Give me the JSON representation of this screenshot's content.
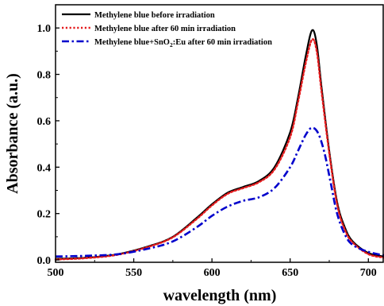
{
  "chart_data": {
    "type": "line",
    "xlabel": "wavelength (nm)",
    "ylabel": "Absorbance (a.u.)",
    "xlim": [
      500,
      710
    ],
    "ylim": [
      -0.01,
      1.1
    ],
    "x_ticks": [
      500,
      550,
      600,
      650,
      700
    ],
    "x_tick_labels": [
      "500",
      "550",
      "600",
      "650",
      "700"
    ],
    "y_ticks": [
      0.0,
      0.2,
      0.4,
      0.6,
      0.8,
      1.0
    ],
    "y_tick_labels": [
      "0.0",
      "0.2",
      "0.4",
      "0.6",
      "0.8",
      "1.0"
    ],
    "grid": false,
    "legend_position": "top-left",
    "series": [
      {
        "name": "Methylene blue before irradiation",
        "color": "#000000",
        "style": "solid",
        "points": [
          [
            500,
            0.005
          ],
          [
            520,
            0.01
          ],
          [
            540,
            0.025
          ],
          [
            560,
            0.06
          ],
          [
            575,
            0.1
          ],
          [
            590,
            0.18
          ],
          [
            600,
            0.24
          ],
          [
            610,
            0.29
          ],
          [
            620,
            0.315
          ],
          [
            630,
            0.34
          ],
          [
            640,
            0.4
          ],
          [
            650,
            0.55
          ],
          [
            655,
            0.7
          ],
          [
            660,
            0.88
          ],
          [
            664,
            0.99
          ],
          [
            667,
            0.93
          ],
          [
            670,
            0.75
          ],
          [
            675,
            0.47
          ],
          [
            680,
            0.25
          ],
          [
            685,
            0.14
          ],
          [
            690,
            0.08
          ],
          [
            700,
            0.03
          ],
          [
            710,
            0.015
          ]
        ]
      },
      {
        "name": "Methylene blue after 60 min irradiation",
        "color": "#e41a1c",
        "style": "dotted",
        "points": [
          [
            500,
            0.002
          ],
          [
            520,
            0.008
          ],
          [
            540,
            0.023
          ],
          [
            560,
            0.058
          ],
          [
            575,
            0.098
          ],
          [
            590,
            0.175
          ],
          [
            600,
            0.235
          ],
          [
            610,
            0.285
          ],
          [
            620,
            0.31
          ],
          [
            630,
            0.335
          ],
          [
            640,
            0.39
          ],
          [
            650,
            0.53
          ],
          [
            655,
            0.68
          ],
          [
            660,
            0.85
          ],
          [
            664,
            0.95
          ],
          [
            667,
            0.9
          ],
          [
            670,
            0.73
          ],
          [
            675,
            0.46
          ],
          [
            680,
            0.24
          ],
          [
            685,
            0.13
          ],
          [
            690,
            0.075
          ],
          [
            700,
            0.025
          ],
          [
            710,
            0.01
          ]
        ]
      },
      {
        "name_parts": {
          "before": "Methylene blue+SnO",
          "sub": "2",
          "after": ":Eu after  60 min irradiation"
        },
        "color": "#0000cc",
        "style": "dashdot",
        "points": [
          [
            500,
            0.015
          ],
          [
            520,
            0.018
          ],
          [
            540,
            0.025
          ],
          [
            560,
            0.05
          ],
          [
            575,
            0.08
          ],
          [
            590,
            0.14
          ],
          [
            600,
            0.19
          ],
          [
            610,
            0.23
          ],
          [
            620,
            0.255
          ],
          [
            630,
            0.27
          ],
          [
            640,
            0.31
          ],
          [
            650,
            0.4
          ],
          [
            655,
            0.47
          ],
          [
            660,
            0.54
          ],
          [
            664,
            0.57
          ],
          [
            668,
            0.545
          ],
          [
            672,
            0.46
          ],
          [
            676,
            0.33
          ],
          [
            680,
            0.2
          ],
          [
            685,
            0.11
          ],
          [
            690,
            0.065
          ],
          [
            700,
            0.035
          ],
          [
            710,
            0.02
          ]
        ]
      }
    ]
  }
}
